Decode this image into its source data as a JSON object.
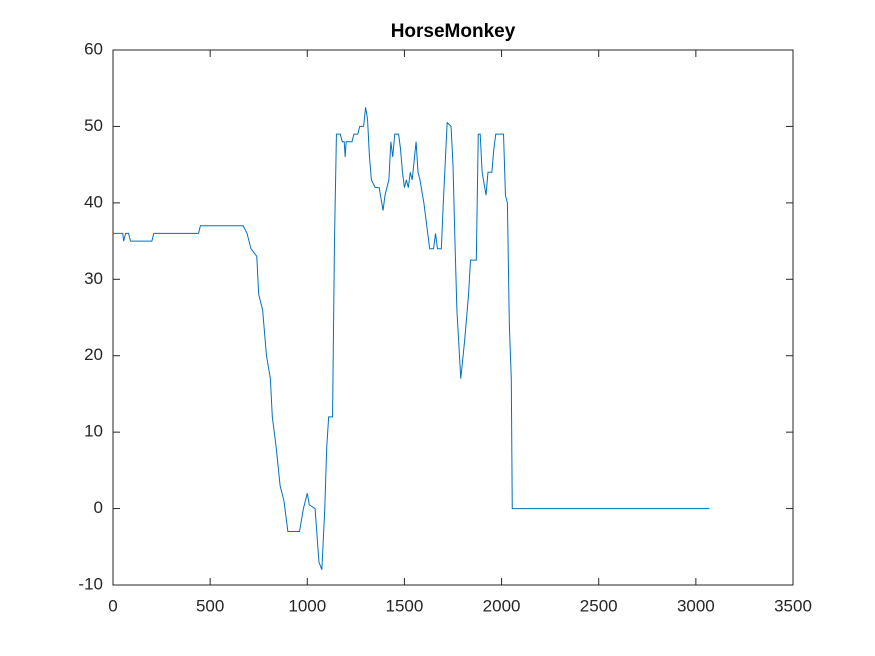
{
  "chart_data": {
    "type": "line",
    "title": "HorseMonkey",
    "x": [
      0,
      50,
      55,
      65,
      80,
      90,
      200,
      210,
      440,
      450,
      670,
      690,
      710,
      740,
      750,
      770,
      790,
      810,
      820,
      840,
      860,
      880,
      900,
      960,
      980,
      1000,
      1010,
      1040,
      1060,
      1075,
      1090,
      1100,
      1110,
      1130,
      1140,
      1150,
      1170,
      1180,
      1190,
      1195,
      1200,
      1230,
      1240,
      1260,
      1270,
      1290,
      1300,
      1310,
      1320,
      1330,
      1350,
      1370,
      1390,
      1400,
      1420,
      1430,
      1440,
      1450,
      1470,
      1480,
      1490,
      1500,
      1510,
      1520,
      1530,
      1540,
      1560,
      1570,
      1580,
      1600,
      1620,
      1630,
      1650,
      1660,
      1670,
      1690,
      1700,
      1720,
      1740,
      1750,
      1760,
      1770,
      1790,
      1810,
      1830,
      1840,
      1870,
      1880,
      1890,
      1900,
      1920,
      1930,
      1950,
      1960,
      1970,
      2010,
      2020,
      2030,
      2040,
      2050,
      2055,
      3070
    ],
    "series": [
      {
        "color": "#0072BD",
        "values": [
          36,
          36,
          35,
          36,
          36,
          35,
          35,
          36,
          36,
          37,
          37,
          36,
          34,
          33,
          28,
          26,
          20,
          17,
          12,
          8,
          3,
          1,
          -3,
          -3,
          0,
          2,
          0.5,
          0,
          -7,
          -8,
          0,
          8,
          12,
          12,
          35,
          49,
          49,
          48,
          48,
          46,
          48,
          48,
          49,
          49,
          50,
          50,
          52.5,
          51,
          46,
          43,
          42,
          42,
          39,
          41,
          43,
          48,
          46,
          49,
          49,
          47,
          44,
          42,
          43,
          42,
          44,
          43,
          48,
          44,
          43,
          40,
          36,
          34,
          34,
          36,
          34,
          34,
          40,
          50.5,
          50,
          45,
          35,
          26,
          17,
          22,
          28,
          32.5,
          32.5,
          49,
          49,
          44,
          41,
          44,
          44,
          47,
          49,
          49,
          41,
          40,
          24,
          17,
          0,
          0
        ]
      }
    ],
    "xlim": [
      0,
      3500
    ],
    "xticks": [
      0,
      500,
      1000,
      1500,
      2000,
      2500,
      3000,
      3500
    ],
    "ylim": [
      -10,
      60
    ],
    "yticks": [
      -10,
      0,
      10,
      20,
      30,
      40,
      50,
      60
    ],
    "grid": false
  }
}
